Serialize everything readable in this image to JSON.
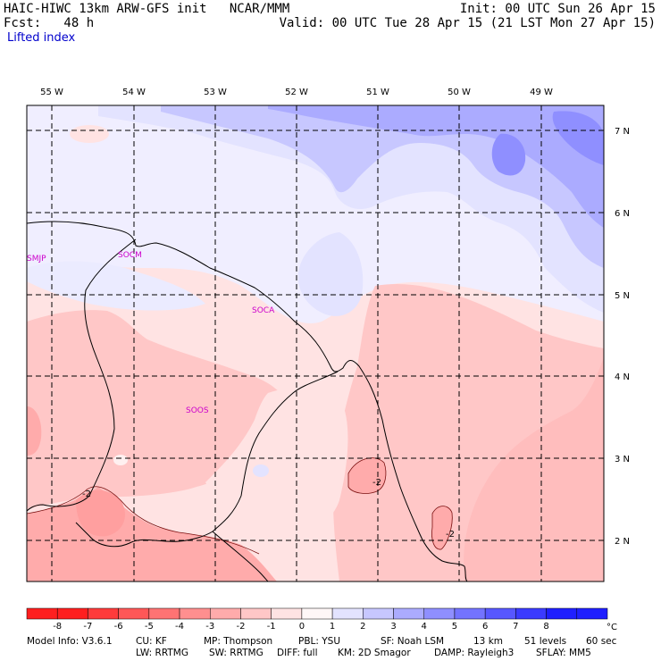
{
  "header": {
    "line1_left": "HAIC-HIWC 13km ARW-GFS init   NCAR/MMM",
    "line2_left": "Fcst:   48 h",
    "line3_left": "Lifted index",
    "line1_right": "Init: 00 UTC Sun 26 Apr 15",
    "line2_right": "Valid: 00 UTC Tue 28 Apr 15 (21 LST Mon 27 Apr 15)"
  },
  "map": {
    "lon_labels": [
      "55 W",
      "54 W",
      "53 W",
      "52 W",
      "51 W",
      "50 W",
      "49 W"
    ],
    "lat_labels": [
      "7 N",
      "6 N",
      "5 N",
      "4 N",
      "3 N",
      "2 N"
    ],
    "stations": [
      "SMJP",
      "SOCM",
      "SOCA",
      "SOOS"
    ],
    "contour_labels": [
      "-2",
      "-2",
      "-2"
    ]
  },
  "colorbar": {
    "ticks": [
      "-8",
      "-7",
      "-6",
      "-5",
      "-4",
      "-3",
      "-2",
      "-1",
      "0",
      "1",
      "2",
      "3",
      "4",
      "5",
      "6",
      "7",
      "8"
    ],
    "unit": "°C",
    "colors": [
      "#ff1f1f",
      "#ff3b3b",
      "#ff5757",
      "#ff7373",
      "#ff8f8f",
      "#ffabab",
      "#ffc7c7",
      "#ffe3e3",
      "#fff7f7",
      "#e3e3ff",
      "#c7c7ff",
      "#ababff",
      "#8f8fff",
      "#7373ff",
      "#5757ff",
      "#3b3bff",
      "#1f1fff"
    ]
  },
  "footer": {
    "line1": [
      "Model Info: V3.6.1",
      "CU: KF",
      "MP: Thompson",
      "PBL: YSU",
      "SF: Noah LSM",
      "13 km",
      "51 levels",
      "60 sec"
    ],
    "line2": [
      "LW: RRTMG",
      "SW: RRTMG",
      "DIFF: full",
      "KM: 2D Smagor",
      "DAMP: Rayleigh3",
      "SFLAY: MM5"
    ]
  }
}
